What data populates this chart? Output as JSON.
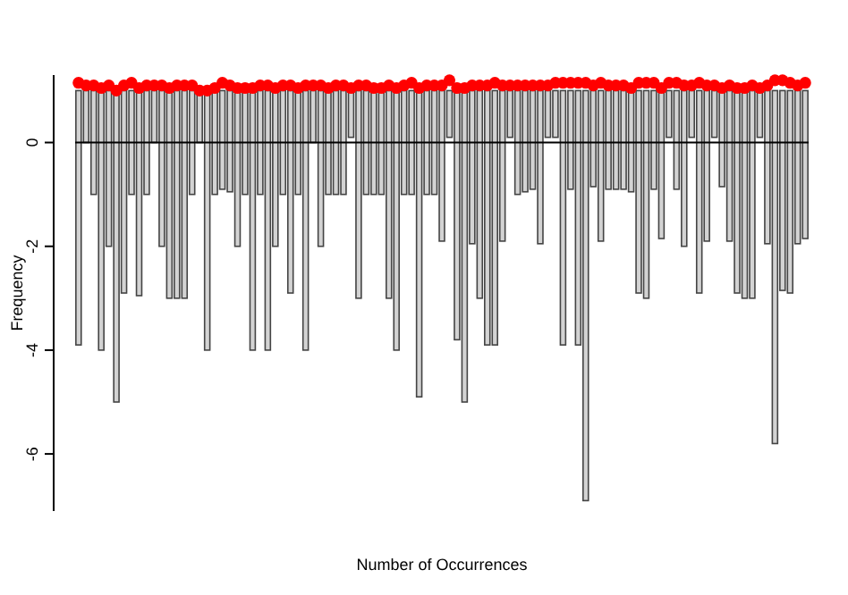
{
  "chart_data": {
    "type": "bar",
    "xlabel": "Number of Occurrences",
    "ylabel": "Frequency",
    "categories": [
      null,
      null,
      null,
      null,
      null,
      null,
      null,
      null,
      null,
      null,
      null,
      null,
      null,
      null,
      null,
      null,
      null,
      null,
      null,
      null,
      null,
      null,
      null,
      null,
      null,
      null,
      null,
      null,
      null,
      null,
      null,
      null,
      null,
      null,
      null,
      null,
      null,
      null,
      null,
      null,
      null,
      null,
      null,
      null,
      null,
      null,
      null,
      null,
      null,
      null,
      null,
      null,
      null,
      null,
      null,
      null,
      null,
      null,
      null,
      null,
      null,
      null,
      null,
      null,
      null,
      null,
      null,
      null,
      null,
      null,
      null,
      null,
      null,
      null,
      null,
      null,
      null,
      null,
      null,
      null,
      null,
      null,
      null,
      null,
      null,
      null,
      null,
      null,
      null,
      null,
      null,
      null,
      null,
      null,
      null,
      null,
      null
    ],
    "series": [
      {
        "color": "#d3d3d3",
        "values": [
          4.9,
          1,
          2,
          5,
          3,
          6,
          3.9,
          2,
          3.95,
          2,
          1,
          3,
          4,
          4,
          4,
          2,
          1,
          5,
          2,
          1.9,
          1.95,
          3,
          2,
          5,
          2,
          5,
          3,
          2,
          3.9,
          2,
          5,
          1,
          3,
          2,
          2,
          2,
          0.9,
          4,
          2,
          2,
          2,
          4,
          5,
          2,
          2,
          5.9,
          2,
          2,
          2.9,
          0.9,
          4.8,
          6,
          2.95,
          4,
          4.9,
          4.9,
          2.9,
          0.9,
          2,
          1.95,
          1.9,
          2.95,
          0.9,
          0.9,
          4.9,
          1.9,
          4.9,
          7.9,
          1.85,
          2.9,
          1.9,
          1.9,
          1.9,
          1.95,
          3.9,
          4,
          1.9,
          2.85,
          0.9,
          1.9,
          3,
          0.9,
          3.9,
          2.9,
          0.9,
          1.85,
          2.9,
          3.9,
          4,
          4,
          0.9,
          2.95,
          6.8,
          3.85,
          3.9,
          2.95,
          2.85
        ],
        "base": [
          -3.9,
          0,
          -1,
          -4,
          -2,
          -5,
          -2.9,
          -1,
          -2.95,
          -1,
          0,
          -2,
          -3,
          -3,
          -3,
          -1,
          0,
          -4,
          -1,
          -0.9,
          -0.95,
          -2,
          -1,
          -4,
          -1,
          -4,
          -2,
          -1,
          -2.9,
          -1,
          -4,
          0,
          -2,
          -1,
          -1,
          -1,
          0.1,
          -3,
          -1,
          -1,
          -1,
          -3,
          -4,
          -1,
          -1,
          -4.9,
          -1,
          -1,
          -1.9,
          0.1,
          -3.8,
          -5,
          -1.95,
          -3,
          -3.9,
          -3.9,
          -1.9,
          0.1,
          -1,
          -0.95,
          -0.9,
          -1.95,
          0.1,
          0.1,
          -3.9,
          -0.9,
          -3.9,
          -6.9,
          -0.85,
          -1.9,
          -0.9,
          -0.9,
          -0.9,
          -0.95,
          -2.9,
          -3,
          -0.9,
          -1.85,
          0.1,
          -0.9,
          -2,
          0.1,
          -2.9,
          -1.9,
          0.1,
          -0.85,
          -1.9,
          -2.9,
          -3,
          -3,
          0.1,
          -1.95,
          -5.8,
          -2.85,
          -2.9,
          -1.95,
          -1.85
        ]
      },
      {
        "type": "scatter",
        "color": "#ff0000",
        "marker": "circle",
        "values": [
          1.15,
          1.1,
          1.1,
          1.05,
          1.1,
          1.0,
          1.1,
          1.15,
          1.05,
          1.1,
          1.1,
          1.1,
          1.05,
          1.1,
          1.1,
          1.1,
          1.0,
          1.0,
          1.05,
          1.15,
          1.1,
          1.05,
          1.05,
          1.05,
          1.1,
          1.1,
          1.05,
          1.1,
          1.1,
          1.05,
          1.1,
          1.1,
          1.1,
          1.05,
          1.1,
          1.1,
          1.05,
          1.1,
          1.1,
          1.05,
          1.05,
          1.1,
          1.05,
          1.1,
          1.15,
          1.05,
          1.1,
          1.1,
          1.1,
          1.2,
          1.05,
          1.05,
          1.1,
          1.1,
          1.1,
          1.15,
          1.1,
          1.1,
          1.1,
          1.1,
          1.1,
          1.1,
          1.1,
          1.15,
          1.15,
          1.15,
          1.15,
          1.15,
          1.1,
          1.15,
          1.1,
          1.1,
          1.1,
          1.05,
          1.15,
          1.15,
          1.15,
          1.05,
          1.15,
          1.15,
          1.1,
          1.1,
          1.15,
          1.1,
          1.1,
          1.05,
          1.1,
          1.05,
          1.05,
          1.1,
          1.05,
          1.1,
          1.2,
          1.2,
          1.15,
          1.1,
          1.15
        ]
      }
    ],
    "ylim": [
      -7.1,
      1.3
    ],
    "yticks": [
      -6,
      -4,
      -2,
      0
    ],
    "ref_lines": [
      {
        "axis": "y",
        "value": 0,
        "color": "#000000"
      }
    ]
  }
}
